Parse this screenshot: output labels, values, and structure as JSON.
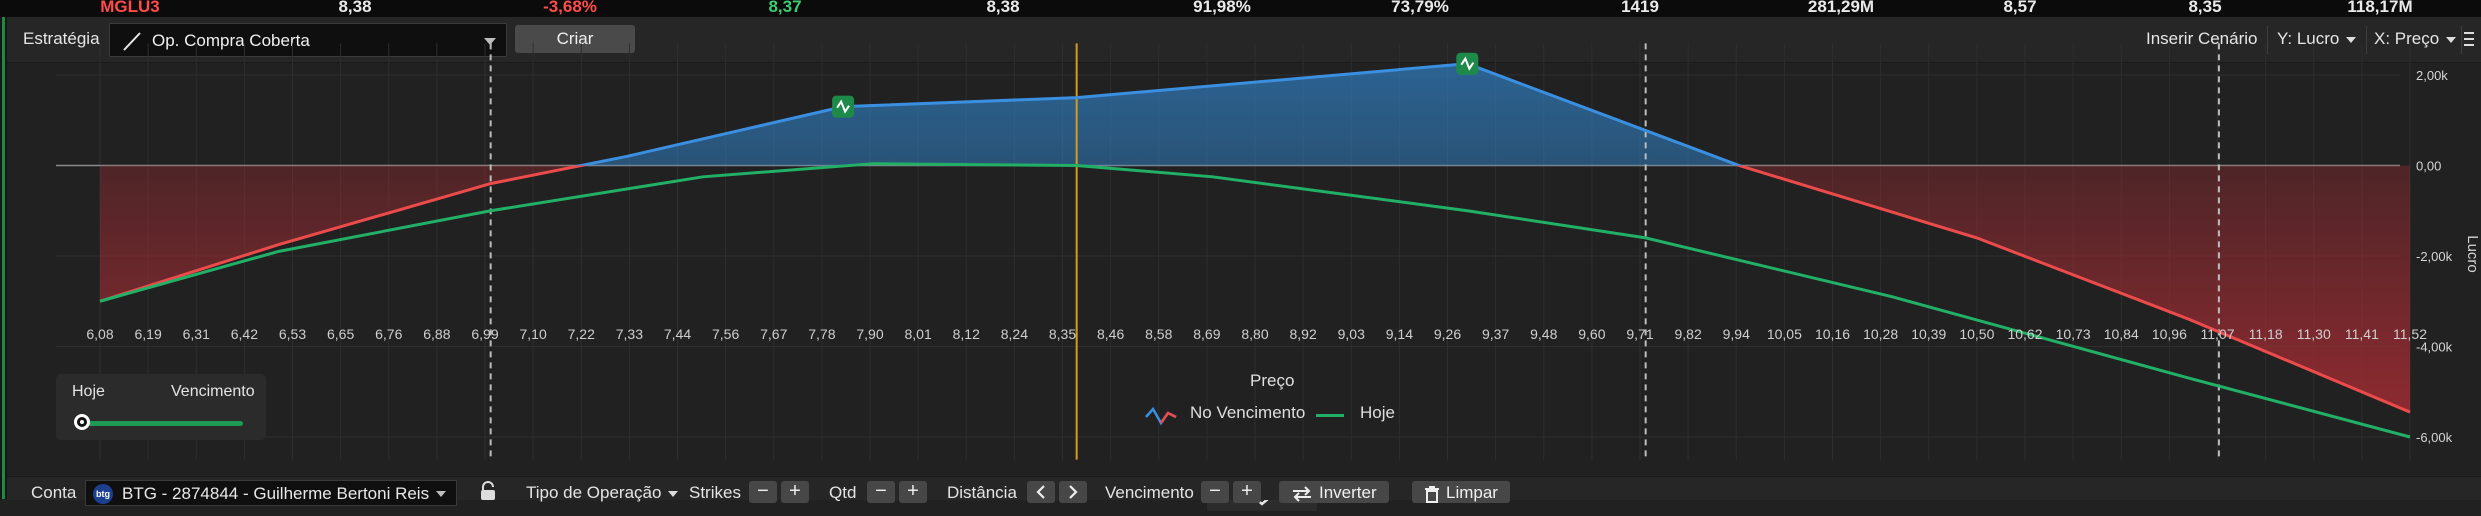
{
  "ticker": {
    "values": [
      {
        "text": "MGLU3",
        "color": "red"
      },
      {
        "text": "8,38",
        "color": "white"
      },
      {
        "text": "-3,68%",
        "color": "red"
      },
      {
        "text": "8,37",
        "color": "green"
      },
      {
        "text": "8,38",
        "color": "white"
      },
      {
        "text": "91,98%",
        "color": "white"
      },
      {
        "text": "73,79%",
        "color": "white"
      },
      {
        "text": "1419",
        "color": "white"
      },
      {
        "text": "281,29M",
        "color": "white"
      },
      {
        "text": "8,57",
        "color": "white"
      },
      {
        "text": "8,35",
        "color": "white"
      },
      {
        "text": "118,17M",
        "color": "white"
      }
    ]
  },
  "toolbar": {
    "strategy_label": "Estratégia",
    "strategy_value": "Op. Compra Coberta",
    "create_label": "Criar",
    "insert_scenario": "Inserir Cenário",
    "y_axis": "Y: Lucro",
    "x_axis": "X: Preço"
  },
  "colors": {
    "expiry_line": "#ec4b4b",
    "today_line": "#22b066",
    "profit_fill": "#2a6ea8",
    "loss_fill": "#9e2a30",
    "spot_line": "#d79a1d",
    "strike_marker": "#1e8a4a"
  },
  "chart_data": {
    "type": "line",
    "xlabel": "Preço",
    "ylabel": "Lucro",
    "x_ticks": [
      "6,08",
      "6,19",
      "6,31",
      "6,42",
      "6,53",
      "6,65",
      "6,76",
      "6,88",
      "6,99",
      "7,10",
      "7,22",
      "7,33",
      "7,44",
      "7,56",
      "7,67",
      "7,78",
      "7,90",
      "8,01",
      "8,12",
      "8,24",
      "8,35",
      "8,46",
      "8,58",
      "8,69",
      "8,80",
      "8,92",
      "9,03",
      "9,14",
      "9,26",
      "9,37",
      "9,48",
      "9,60",
      "9,71",
      "9,82",
      "9,94",
      "10,05",
      "10,16",
      "10,28",
      "10,39",
      "10,50",
      "10,62",
      "10,73",
      "10,84",
      "10,96",
      "11,07",
      "11,18",
      "11,30",
      "11,41",
      "11,52"
    ],
    "y_ticks": [
      "2,00k",
      "0,00",
      "-2,00k",
      "-4,00k",
      "-6,00k"
    ],
    "y_tick_values": [
      2000,
      0,
      -2000,
      -4000,
      -6000
    ],
    "xlim": [
      6.08,
      11.52
    ],
    "ylim": [
      -6500,
      2700
    ],
    "spot_price": 8.38,
    "vertical_dashed_x": [
      7.0,
      9.72,
      11.07
    ],
    "strike_markers_x": [
      7.83,
      9.3
    ],
    "series": [
      {
        "name": "No Vencimento",
        "x": [
          6.08,
          6.5,
          7.0,
          7.32,
          7.83,
          8.38,
          9.3,
          9.94,
          10.5,
          11.0,
          11.52
        ],
        "y": [
          -3000,
          -1750,
          -400,
          200,
          1300,
          1500,
          2250,
          0,
          -1600,
          -3400,
          -5450
        ]
      },
      {
        "name": "Hoje",
        "x": [
          6.08,
          6.5,
          7.0,
          7.5,
          7.9,
          8.38,
          8.7,
          9.3,
          9.72,
          10.3,
          11.0,
          11.52
        ],
        "y": [
          -3000,
          -1900,
          -1000,
          -250,
          40,
          0,
          -250,
          -1000,
          -1600,
          -2900,
          -4700,
          -6000
        ]
      }
    ],
    "legend": [
      "No Vencimento",
      "Hoje"
    ]
  },
  "time_slider": {
    "left_label": "Hoje",
    "right_label": "Vencimento"
  },
  "bottom_bar": {
    "account_label": "Conta",
    "account_value": "BTG - 2874844 - Guilherme Bertoni Reis",
    "operation_type": "Tipo de Operação",
    "strikes_label": "Strikes",
    "qty_label": "Qtd",
    "distance_label": "Distância",
    "expiry_label": "Vencimento",
    "invert_label": "Inverter",
    "clear_label": "Limpar",
    "minus": "−",
    "plus": "+"
  }
}
